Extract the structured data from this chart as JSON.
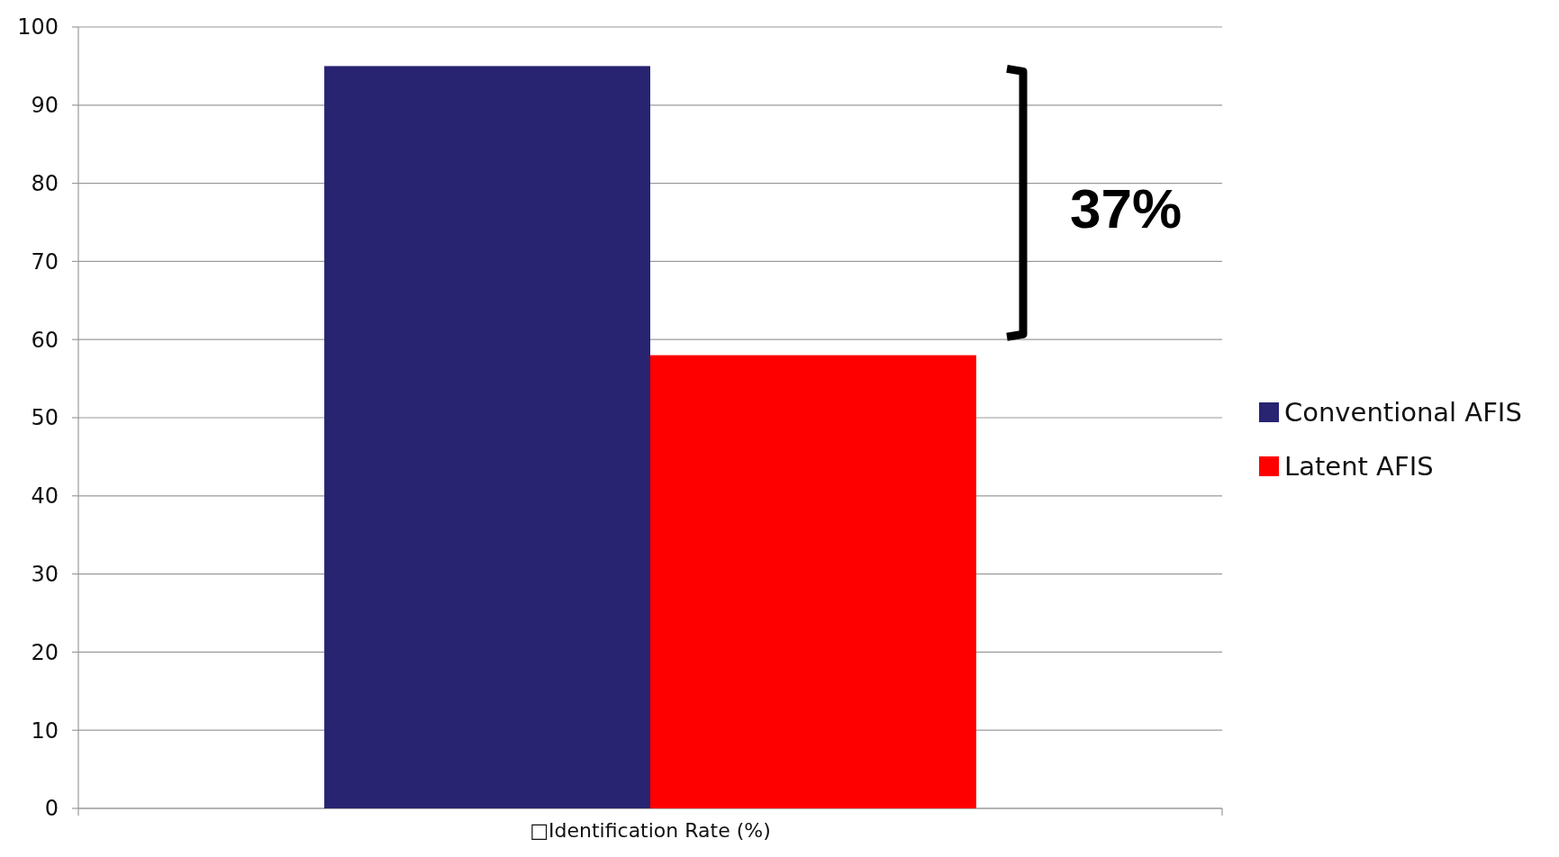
{
  "chart_data": {
    "type": "bar",
    "categories": [
      "□Identification Rate (%)"
    ],
    "series": [
      {
        "name": "Conventional AFIS",
        "color": "#282472",
        "values": [
          95
        ]
      },
      {
        "name": "Latent AFIS",
        "color": "#ff0000",
        "values": [
          58
        ]
      }
    ],
    "ylim": [
      0,
      100
    ],
    "yticks": [
      0,
      10,
      20,
      30,
      40,
      50,
      60,
      70,
      80,
      90,
      100
    ],
    "grid": "y",
    "legend": "right",
    "annotations": [
      "37%"
    ]
  }
}
